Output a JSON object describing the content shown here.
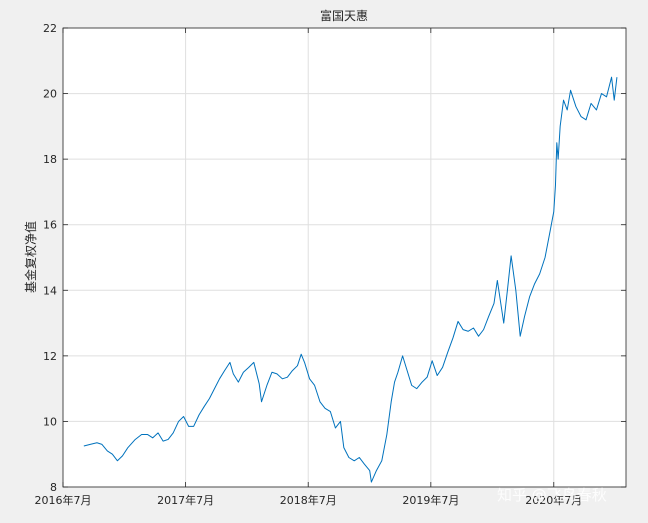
{
  "chart_data": {
    "type": "line",
    "title": "富国天惠",
    "xlabel": "",
    "ylabel": "基金复权净值",
    "x_ticks": [
      "2016年7月",
      "2017年7月",
      "2018年7月",
      "2019年7月",
      "2020年7月"
    ],
    "x_range": [
      "2016-07",
      "2021-02"
    ],
    "ylim": [
      8,
      22
    ],
    "y_ticks": [
      "8",
      "10",
      "12",
      "14",
      "16",
      "18",
      "20",
      "22"
    ],
    "grid": true,
    "color": "#0072bd",
    "series": [
      {
        "name": "",
        "points": [
          [
            "2016-09-01",
            9.25
          ],
          [
            "2016-09-20",
            9.3
          ],
          [
            "2016-10-10",
            9.35
          ],
          [
            "2016-10-25",
            9.3
          ],
          [
            "2016-11-10",
            9.1
          ],
          [
            "2016-11-25",
            9.0
          ],
          [
            "2016-12-10",
            8.8
          ],
          [
            "2016-12-25",
            8.95
          ],
          [
            "2017-01-10",
            9.2
          ],
          [
            "2017-02-01",
            9.45
          ],
          [
            "2017-02-20",
            9.6
          ],
          [
            "2017-03-10",
            9.6
          ],
          [
            "2017-03-25",
            9.5
          ],
          [
            "2017-04-10",
            9.65
          ],
          [
            "2017-04-25",
            9.4
          ],
          [
            "2017-05-10",
            9.45
          ],
          [
            "2017-05-25",
            9.65
          ],
          [
            "2017-06-10",
            10.0
          ],
          [
            "2017-06-25",
            10.15
          ],
          [
            "2017-07-10",
            9.85
          ],
          [
            "2017-07-25",
            9.85
          ],
          [
            "2017-08-10",
            10.2
          ],
          [
            "2017-08-25",
            10.45
          ],
          [
            "2017-09-10",
            10.7
          ],
          [
            "2017-09-25",
            11.0
          ],
          [
            "2017-10-10",
            11.3
          ],
          [
            "2017-10-25",
            11.55
          ],
          [
            "2017-11-10",
            11.8
          ],
          [
            "2017-11-20",
            11.45
          ],
          [
            "2017-12-05",
            11.2
          ],
          [
            "2017-12-20",
            11.5
          ],
          [
            "2018-01-05",
            11.65
          ],
          [
            "2018-01-20",
            11.8
          ],
          [
            "2018-02-05",
            11.15
          ],
          [
            "2018-02-12",
            10.6
          ],
          [
            "2018-02-28",
            11.1
          ],
          [
            "2018-03-15",
            11.5
          ],
          [
            "2018-03-30",
            11.45
          ],
          [
            "2018-04-15",
            11.3
          ],
          [
            "2018-04-30",
            11.35
          ],
          [
            "2018-05-15",
            11.55
          ],
          [
            "2018-05-30",
            11.7
          ],
          [
            "2018-06-10",
            12.05
          ],
          [
            "2018-06-20",
            11.8
          ],
          [
            "2018-07-05",
            11.3
          ],
          [
            "2018-07-20",
            11.1
          ],
          [
            "2018-08-05",
            10.6
          ],
          [
            "2018-08-20",
            10.4
          ],
          [
            "2018-09-05",
            10.3
          ],
          [
            "2018-09-20",
            9.8
          ],
          [
            "2018-10-05",
            10.0
          ],
          [
            "2018-10-15",
            9.2
          ],
          [
            "2018-10-30",
            8.9
          ],
          [
            "2018-11-15",
            8.8
          ],
          [
            "2018-11-30",
            8.9
          ],
          [
            "2018-12-15",
            8.7
          ],
          [
            "2018-12-31",
            8.5
          ],
          [
            "2019-01-05",
            8.15
          ],
          [
            "2019-01-20",
            8.5
          ],
          [
            "2019-02-05",
            8.8
          ],
          [
            "2019-02-20",
            9.6
          ],
          [
            "2019-03-05",
            10.6
          ],
          [
            "2019-03-15",
            11.2
          ],
          [
            "2019-03-25",
            11.5
          ],
          [
            "2019-04-08",
            12.0
          ],
          [
            "2019-04-20",
            11.6
          ],
          [
            "2019-05-05",
            11.1
          ],
          [
            "2019-05-20",
            11.0
          ],
          [
            "2019-06-05",
            11.2
          ],
          [
            "2019-06-20",
            11.35
          ],
          [
            "2019-07-05",
            11.85
          ],
          [
            "2019-07-20",
            11.4
          ],
          [
            "2019-08-05",
            11.65
          ],
          [
            "2019-08-20",
            12.1
          ],
          [
            "2019-09-05",
            12.55
          ],
          [
            "2019-09-20",
            13.05
          ],
          [
            "2019-10-05",
            12.8
          ],
          [
            "2019-10-20",
            12.75
          ],
          [
            "2019-11-05",
            12.85
          ],
          [
            "2019-11-20",
            12.6
          ],
          [
            "2019-12-05",
            12.8
          ],
          [
            "2019-12-20",
            13.2
          ],
          [
            "2020-01-05",
            13.6
          ],
          [
            "2020-01-15",
            14.3
          ],
          [
            "2020-02-03",
            13.0
          ],
          [
            "2020-02-15",
            14.1
          ],
          [
            "2020-02-25",
            15.05
          ],
          [
            "2020-03-10",
            14.0
          ],
          [
            "2020-03-23",
            12.6
          ],
          [
            "2020-04-05",
            13.2
          ],
          [
            "2020-04-20",
            13.8
          ],
          [
            "2020-05-05",
            14.2
          ],
          [
            "2020-05-20",
            14.5
          ],
          [
            "2020-06-05",
            15.0
          ],
          [
            "2020-06-20",
            15.8
          ],
          [
            "2020-07-01",
            16.4
          ],
          [
            "2020-07-06",
            17.2
          ],
          [
            "2020-07-10",
            18.5
          ],
          [
            "2020-07-14",
            18.0
          ],
          [
            "2020-07-20",
            19.0
          ],
          [
            "2020-07-30",
            19.8
          ],
          [
            "2020-08-10",
            19.5
          ],
          [
            "2020-08-20",
            20.1
          ],
          [
            "2020-09-05",
            19.6
          ],
          [
            "2020-09-20",
            19.3
          ],
          [
            "2020-10-05",
            19.2
          ],
          [
            "2020-10-20",
            19.7
          ],
          [
            "2020-11-05",
            19.5
          ],
          [
            "2020-11-20",
            20.0
          ],
          [
            "2020-12-05",
            19.9
          ],
          [
            "2020-12-20",
            20.5
          ],
          [
            "2020-12-28",
            19.8
          ],
          [
            "2021-01-05",
            20.5
          ]
        ]
      }
    ]
  },
  "watermark": "知乎 @飞鸟春秋"
}
